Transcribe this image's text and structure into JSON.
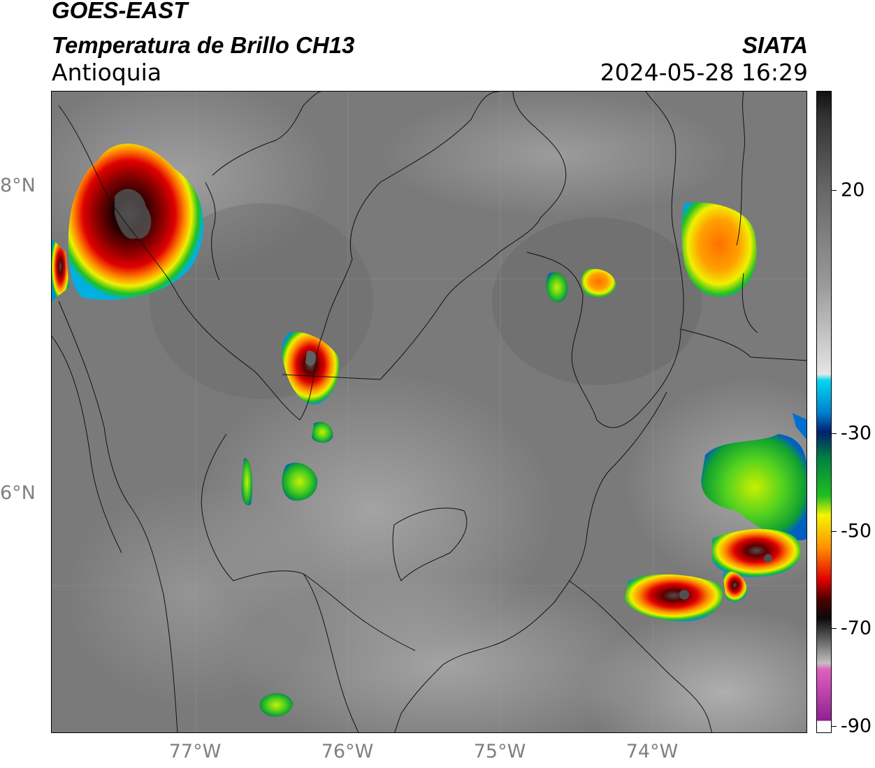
{
  "header": {
    "satellite": "GOES-EAST",
    "product": "Temperatura de Brillo CH13",
    "region": "Antioquia",
    "agency": "SIATA",
    "datetime": "2024-05-28 16:29"
  },
  "axes": {
    "latitude_labels": [
      "8°N",
      "6°N"
    ],
    "longitude_labels": [
      "77°W",
      "76°W",
      "75°W",
      "74°W"
    ]
  },
  "colorbar": {
    "labels": [
      "20",
      "-30",
      "-50",
      "-70",
      "-90"
    ],
    "colors": {
      "magenta": "#b040c0",
      "black": "#0a0a0a",
      "red": "#e00000",
      "orange": "#ff9000",
      "yellow": "#f5f500",
      "green": "#20c020",
      "darkblue": "#003080",
      "cyan": "#00c8f0",
      "white": "#f5f5f5",
      "gray": "#808080"
    }
  }
}
